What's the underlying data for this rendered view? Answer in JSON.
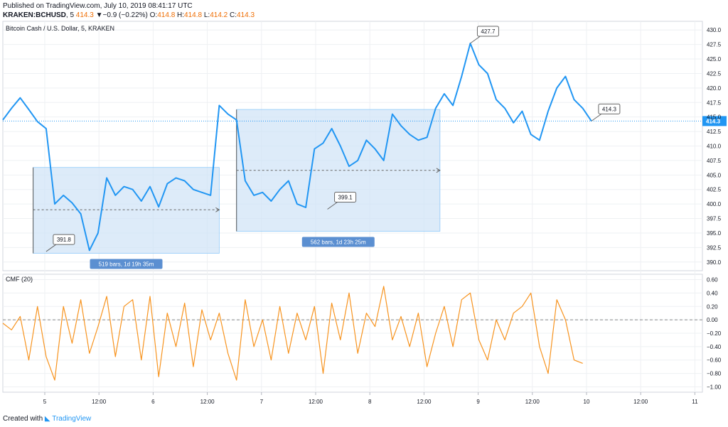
{
  "header": {
    "published": "Published on TradingView.com, July 10, 2019 08:41:17 UTC",
    "symbol": "KRAKEN:BCHUSD",
    "interval": "5",
    "last": "414.3",
    "change_arrow": "▼",
    "change": "−0.9 (−0.22%)",
    "o_label": "O:",
    "o": "414.8",
    "h_label": "H:",
    "h": "414.8",
    "l_label": "L:",
    "l": "414.2",
    "c_label": "C:",
    "c": "414.3"
  },
  "footer": {
    "created": "Created with",
    "brand": "TradingView"
  },
  "colors": {
    "price": "#2196f3",
    "cmf": "#f7931e",
    "range_fill": "#cfe3f7",
    "badge": "#5b8fd1",
    "grid": "#eef0f3"
  },
  "chart_data": [
    {
      "type": "line",
      "title": "Bitcoin Cash / U.S. Dollar, 5, KRAKEN",
      "ylim": [
        388.5,
        431.5
      ],
      "y_ticks": [
        "430.0",
        "427.5",
        "425.0",
        "422.5",
        "420.0",
        "417.5",
        "415.0",
        "412.5",
        "410.0",
        "407.5",
        "405.0",
        "402.5",
        "400.0",
        "397.5",
        "395.0",
        "392.5",
        "390.0"
      ],
      "x_ticks": [
        "5",
        "12:00",
        "6",
        "12:00",
        "7",
        "12:00",
        "8",
        "12:00",
        "9",
        "12:00",
        "10",
        "12:00",
        "11"
      ],
      "last_price_label": "414.3",
      "series": [
        {
          "x": [
            0,
            2,
            4,
            6,
            8,
            10,
            12,
            14,
            16,
            18,
            20,
            22,
            24,
            26,
            28,
            30,
            32,
            34,
            36,
            38,
            40,
            42,
            44,
            46,
            48,
            50,
            52,
            54,
            56,
            58,
            60,
            62,
            64,
            66,
            68,
            70,
            72,
            74,
            76,
            78,
            80,
            82,
            84,
            86,
            88,
            90,
            92,
            94,
            96,
            98,
            100,
            102,
            104,
            106,
            108,
            110,
            112,
            114,
            116,
            118,
            120,
            122,
            124,
            126,
            128,
            130,
            132,
            134,
            136,
            138,
            140,
            142,
            144,
            146,
            148,
            150,
            152,
            154,
            156,
            158,
            160
          ],
          "values": [
            414.5,
            416.5,
            418.3,
            416.3,
            414.2,
            413.0,
            400.0,
            401.5,
            400.2,
            398.3,
            392.0,
            395.0,
            404.5,
            401.5,
            403.0,
            402.5,
            400.5,
            403.0,
            399.5,
            403.5,
            404.5,
            404.0,
            402.5,
            402.0,
            401.5,
            417.0,
            415.5,
            414.5,
            404.0,
            401.5,
            402.0,
            400.5,
            402.5,
            404.0,
            400.0,
            399.4,
            409.5,
            410.5,
            413.0,
            410.0,
            406.5,
            407.5,
            411.0,
            409.5,
            407.5,
            415.5,
            413.5,
            412.0,
            411.0,
            411.5,
            416.5,
            419.0,
            417.0,
            422.0,
            427.7,
            424.0,
            422.5,
            418.0,
            416.5,
            414.0,
            416.0,
            412.0,
            411.0,
            416.0,
            420.0,
            422.0,
            418.0,
            416.5,
            414.3,
            414.3,
            414.3,
            414.3,
            414.3,
            414.3,
            414.3,
            414.3,
            414.3,
            414.3,
            414.3,
            414.3,
            414.3
          ]
        }
      ],
      "annotations": [
        {
          "label": "391.8",
          "x": 10,
          "y": 391.8
        },
        {
          "label": "399.1",
          "x": 75,
          "y": 399.1
        },
        {
          "label": "427.7",
          "x": 108,
          "y": 427.7
        },
        {
          "label": "414.3",
          "x": 136,
          "y": 414.3
        }
      ],
      "range_boxes": [
        {
          "label": "519 bars, 1d 19h 35m",
          "x0": 7,
          "x1": 50,
          "y0": 391.5,
          "y1": 406.3,
          "mid": 399.0
        },
        {
          "label": "562 bars, 1d 23h 25m",
          "x0": 54,
          "x1": 101,
          "y0": 395.3,
          "y1": 416.3,
          "mid": 405.8
        }
      ]
    },
    {
      "type": "line",
      "title": "CMF (20)",
      "ylim": [
        -1.08,
        0.68
      ],
      "y_ticks": [
        "0.60",
        "0.40",
        "0.20",
        "0.00",
        "−0.20",
        "−0.40",
        "−0.60",
        "−0.80",
        "−1.00"
      ],
      "zero_line": 0.0,
      "series": [
        {
          "x": [
            0,
            2,
            4,
            6,
            8,
            10,
            12,
            14,
            16,
            18,
            20,
            22,
            24,
            26,
            28,
            30,
            32,
            34,
            36,
            38,
            40,
            42,
            44,
            46,
            48,
            50,
            52,
            54,
            56,
            58,
            60,
            62,
            64,
            66,
            68,
            70,
            72,
            74,
            76,
            78,
            80,
            82,
            84,
            86,
            88,
            90,
            92,
            94,
            96,
            98,
            100,
            102,
            104,
            106,
            108,
            110,
            112,
            114,
            116,
            118,
            120,
            122,
            124,
            126,
            128,
            130,
            132,
            134
          ],
          "values": [
            -0.05,
            -0.15,
            0.05,
            -0.6,
            0.2,
            -0.55,
            -0.9,
            0.2,
            -0.35,
            0.3,
            -0.5,
            -0.1,
            0.35,
            -0.55,
            0.2,
            0.3,
            -0.6,
            0.35,
            -0.85,
            0.1,
            -0.4,
            0.25,
            -0.7,
            0.15,
            -0.3,
            0.1,
            -0.5,
            -0.9,
            0.3,
            -0.4,
            0.0,
            -0.6,
            0.2,
            -0.5,
            0.1,
            -0.3,
            0.2,
            -0.8,
            0.25,
            -0.3,
            0.4,
            -0.5,
            0.1,
            -0.1,
            0.5,
            -0.3,
            0.05,
            -0.4,
            0.1,
            -0.7,
            -0.2,
            0.2,
            -0.4,
            0.3,
            0.4,
            -0.3,
            -0.6,
            0.0,
            -0.3,
            0.1,
            0.2,
            0.4,
            -0.4,
            -0.8,
            0.3,
            0.0,
            -0.6,
            -0.65
          ]
        }
      ]
    }
  ]
}
